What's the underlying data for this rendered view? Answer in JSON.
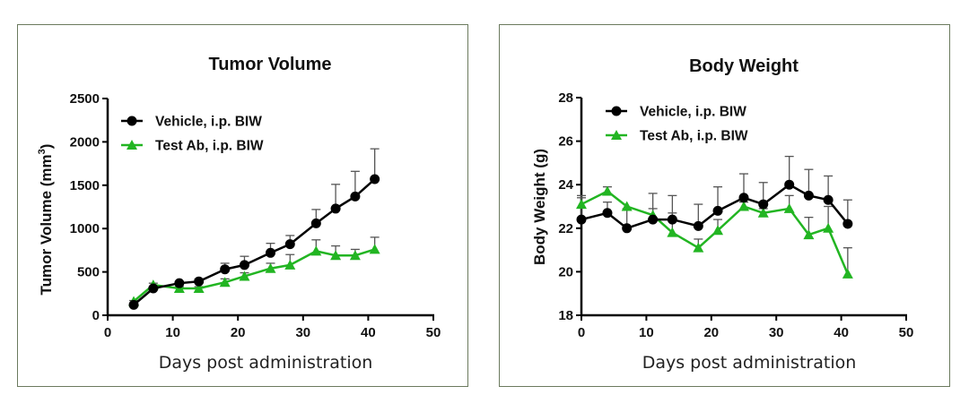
{
  "colors": {
    "vehicle": "#000000",
    "test_ab": "#22b522",
    "error_bar": "#555555",
    "panel_border": "#6b7a5e"
  },
  "chart_data": [
    {
      "type": "line",
      "title": "Tumor Volume",
      "xlabel": "Days post administration",
      "ylabel": "Tumor Volume (mm",
      "ylabel_sup": "3",
      "ylabel_end": ")",
      "xlim": [
        0,
        50
      ],
      "ylim": [
        0,
        2500
      ],
      "xticks": [
        0,
        10,
        20,
        30,
        40,
        50
      ],
      "yticks": [
        0,
        500,
        1000,
        1500,
        2000,
        2500
      ],
      "grid": false,
      "legend_position": "top-left",
      "series": [
        {
          "name": "Vehicle, i.p. BIW",
          "marker": "circle",
          "color_key": "vehicle",
          "x": [
            4,
            7,
            11,
            14,
            18,
            21,
            25,
            28,
            32,
            35,
            38,
            41
          ],
          "y": [
            120,
            310,
            370,
            390,
            530,
            580,
            720,
            820,
            1060,
            1230,
            1370,
            1570
          ],
          "error_upper": [
            140,
            330,
            390,
            420,
            600,
            680,
            830,
            920,
            1220,
            1510,
            1660,
            1920
          ]
        },
        {
          "name": "Test Ab, i.p. BIW",
          "marker": "triangle",
          "color_key": "test_ab",
          "x": [
            4,
            7,
            11,
            14,
            18,
            21,
            25,
            28,
            32,
            35,
            38,
            41
          ],
          "y": [
            160,
            350,
            310,
            310,
            380,
            450,
            540,
            580,
            740,
            690,
            690,
            760
          ],
          "error_upper": [
            170,
            370,
            330,
            330,
            420,
            490,
            600,
            700,
            870,
            800,
            760,
            900
          ]
        }
      ]
    },
    {
      "type": "line",
      "title": "Body Weight",
      "xlabel": "Days post administration",
      "ylabel": "Body Weight (g)",
      "xlim": [
        0,
        50
      ],
      "ylim": [
        18,
        28
      ],
      "xticks": [
        0,
        10,
        20,
        30,
        40,
        50
      ],
      "yticks": [
        18,
        20,
        22,
        24,
        26,
        28
      ],
      "grid": false,
      "legend_position": "top-left",
      "series": [
        {
          "name": "Vehicle, i.p. BIW",
          "marker": "circle",
          "color_key": "vehicle",
          "x": [
            0,
            4,
            7,
            11,
            14,
            18,
            21,
            25,
            28,
            32,
            35,
            38,
            41
          ],
          "y": [
            22.4,
            22.7,
            22.0,
            22.4,
            22.4,
            22.1,
            22.8,
            23.4,
            23.1,
            24.0,
            23.5,
            23.3,
            22.2
          ],
          "error_upper": [
            23.4,
            23.2,
            22.9,
            23.6,
            23.5,
            23.1,
            23.9,
            24.5,
            24.1,
            25.3,
            24.7,
            24.4,
            23.3
          ]
        },
        {
          "name": "Test Ab, i.p. BIW",
          "marker": "triangle",
          "color_key": "test_ab",
          "x": [
            0,
            4,
            7,
            11,
            14,
            18,
            21,
            25,
            28,
            32,
            35,
            38,
            41
          ],
          "y": [
            23.1,
            23.7,
            23.0,
            22.6,
            21.8,
            21.1,
            21.9,
            23.0,
            22.7,
            22.9,
            21.7,
            22.0,
            19.9
          ],
          "error_upper": [
            23.5,
            23.9,
            23.0,
            22.9,
            22.7,
            21.5,
            22.4,
            23.2,
            22.9,
            23.5,
            22.5,
            23.0,
            21.1
          ]
        }
      ]
    }
  ]
}
